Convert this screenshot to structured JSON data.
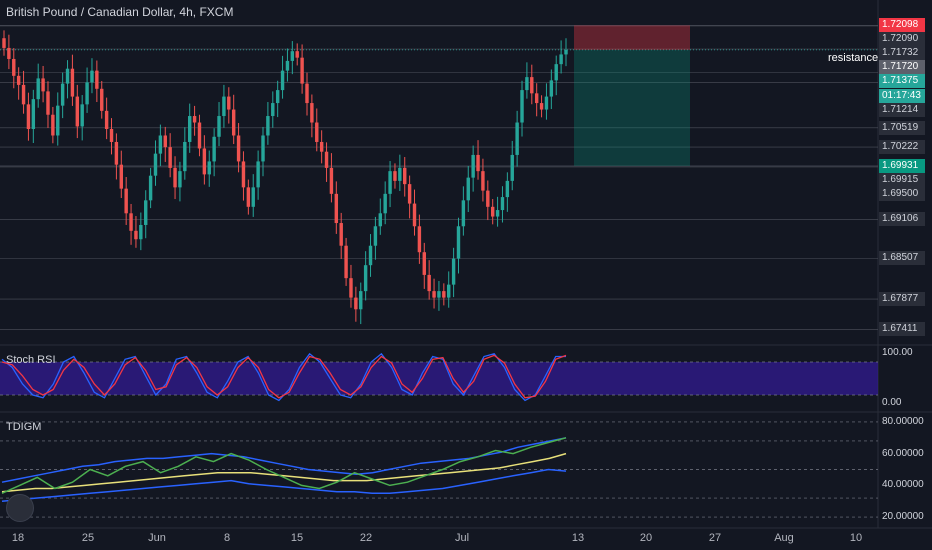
{
  "title": "British Pound / Canadian Dollar, 4h, FXCM",
  "panes": {
    "stoch_label": "Stoch RSI",
    "tdigm_label": "TDIGM"
  },
  "annotations": {
    "resistance": "resistance"
  },
  "price_axis": {
    "labels": [
      "1.72098",
      "1.72090",
      "1.71732",
      "1.71720",
      "1.71375",
      "01:17:43",
      "1.71214",
      "1.70519",
      "1.70222",
      "1.69931",
      "1.69915",
      "1.69500",
      "1.69106",
      "1.68507",
      "1.67877",
      "1.67411"
    ]
  },
  "stoch_axis": [
    "100.00",
    "0.00"
  ],
  "tdigm_axis": [
    "80.00000",
    "60.00000",
    "40.00000",
    "20.00000"
  ],
  "time_axis": [
    "18",
    "25",
    "Jun",
    "8",
    "15",
    "22",
    "Jul",
    "13",
    "20",
    "27",
    "Aug",
    "10"
  ],
  "colors": {
    "bg": "#131722",
    "up": "#26a69a",
    "down": "#ef5350",
    "stoch_k": "#2962ff",
    "stoch_d": "#f23645",
    "stoch_band": "#311b92"
  },
  "chart_data": [
    {
      "type": "candlestick",
      "title": "British Pound / Canadian Dollar, 4h, FXCM",
      "ylim": [
        1.672,
        1.7215
      ],
      "trade_box": {
        "stop": 1.72098,
        "entry": 1.7172,
        "target": 1.69931
      },
      "closes": [
        1.7175,
        1.7158,
        1.7132,
        1.7118,
        1.7088,
        1.705,
        1.7096,
        1.7128,
        1.7108,
        1.7072,
        1.704,
        1.7086,
        1.712,
        1.7143,
        1.71,
        1.7054,
        1.7088,
        1.7122,
        1.714,
        1.7112,
        1.7078,
        1.705,
        1.703,
        1.6995,
        1.6958,
        1.692,
        1.6893,
        1.688,
        1.6902,
        1.694,
        1.6978,
        1.7012,
        1.704,
        1.7022,
        1.699,
        1.696,
        1.6985,
        1.703,
        1.707,
        1.706,
        1.702,
        1.698,
        1.7,
        1.7038,
        1.707,
        1.71,
        1.708,
        1.704,
        1.7,
        1.696,
        1.693,
        1.696,
        1.7,
        1.704,
        1.707,
        1.709,
        1.711,
        1.714,
        1.7155,
        1.717,
        1.716,
        1.712,
        1.709,
        1.706,
        1.703,
        1.7015,
        1.699,
        1.695,
        1.6905,
        1.687,
        1.682,
        1.679,
        1.6772,
        1.68,
        1.684,
        1.687,
        1.69,
        1.692,
        1.695,
        1.6985,
        1.697,
        1.699,
        1.6965,
        1.6935,
        1.69,
        1.686,
        1.6825,
        1.68,
        1.679,
        1.68,
        1.679,
        1.681,
        1.685,
        1.69,
        1.694,
        1.6975,
        1.701,
        1.6985,
        1.6955,
        1.693,
        1.6915,
        1.6925,
        1.6945,
        1.697,
        1.701,
        1.706,
        1.711,
        1.713,
        1.7105,
        1.709,
        1.708,
        1.71,
        1.7125,
        1.715,
        1.7165,
        1.7172
      ]
    },
    {
      "type": "line",
      "title": "Stoch RSI",
      "ylim": [
        0,
        100
      ],
      "series": [
        {
          "values": [
            85,
            70,
            40,
            20,
            15,
            40,
            80,
            90,
            60,
            25,
            15,
            50,
            85,
            90,
            55,
            20,
            40,
            85,
            90,
            60,
            25,
            15,
            45,
            80,
            90,
            60,
            20,
            10,
            30,
            70,
            95,
            80,
            50,
            20,
            15,
            40,
            80,
            95,
            70,
            30,
            20,
            60,
            90,
            85,
            40,
            20,
            55,
            90,
            95,
            70,
            30,
            10,
            20,
            55,
            90,
            90
          ]
        },
        {
          "values": [
            80,
            75,
            55,
            30,
            20,
            30,
            65,
            85,
            70,
            40,
            20,
            40,
            75,
            88,
            65,
            30,
            35,
            75,
            88,
            70,
            35,
            20,
            35,
            70,
            88,
            70,
            30,
            15,
            25,
            60,
            90,
            85,
            60,
            30,
            20,
            35,
            70,
            90,
            78,
            40,
            25,
            50,
            85,
            88,
            50,
            25,
            45,
            85,
            92,
            78,
            40,
            15,
            18,
            45,
            85,
            92
          ]
        }
      ]
    },
    {
      "type": "line",
      "title": "TDIGM",
      "ylim": [
        15,
        85
      ],
      "series": [
        {
          "values": [
            42,
            44,
            46,
            48,
            50,
            52,
            53,
            55,
            56,
            57,
            57,
            58,
            59,
            60,
            59,
            58,
            56,
            54,
            52,
            50,
            49,
            48,
            47,
            48,
            50,
            52,
            54,
            55,
            56,
            57,
            59,
            61,
            64,
            66,
            68,
            70
          ]
        },
        {
          "values": [
            36,
            37,
            38,
            38,
            39,
            40,
            41,
            42,
            43,
            44,
            45,
            46,
            47,
            48,
            48,
            48,
            47,
            46,
            45,
            44,
            43,
            43,
            43,
            44,
            45,
            46,
            47,
            48,
            49,
            50,
            51,
            53,
            55,
            57,
            60
          ]
        },
        {
          "values": [
            30,
            31,
            32,
            33,
            34,
            35,
            36,
            37,
            38,
            39,
            40,
            41,
            42,
            43,
            41,
            40,
            39,
            38,
            37,
            36,
            36,
            35,
            35,
            36,
            37,
            38,
            40,
            42,
            44,
            46,
            48,
            50,
            49
          ]
        },
        {
          "values": [
            35,
            40,
            45,
            38,
            42,
            50,
            46,
            52,
            55,
            48,
            52,
            58,
            55,
            60,
            56,
            50,
            45,
            40,
            38,
            42,
            48,
            44,
            40,
            42,
            46,
            50,
            55,
            58,
            62,
            60,
            64,
            67,
            70
          ]
        }
      ]
    }
  ]
}
